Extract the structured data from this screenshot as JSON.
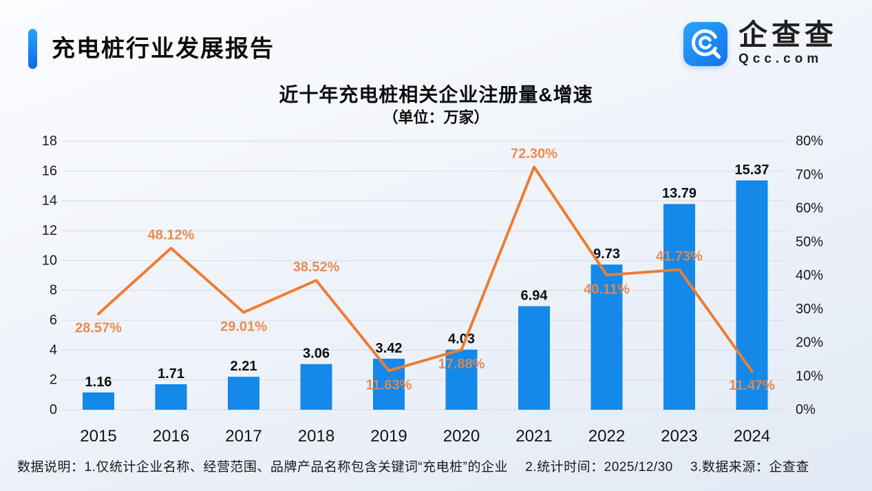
{
  "header": {
    "title": "充电桩行业发展报告",
    "logo_text": "企查查",
    "logo_domain": "Qcc.com"
  },
  "footer": {
    "note": "数据说明：1.仅统计企业名称、经营范围、品牌产品名称包含关键词“充电桩”的企业　 2.统计时间：2025/12/30 　3.数据来源：企查查"
  },
  "chart_data": {
    "type": "bar+line combo",
    "title": "近十年充电桩相关企业注册量&增速",
    "subtitle": "（单位：万家）",
    "categories": [
      "2015",
      "2016",
      "2017",
      "2018",
      "2019",
      "2020",
      "2021",
      "2022",
      "2023",
      "2024"
    ],
    "series": [
      {
        "name": "充电桩相关企业注册量(万家)",
        "type": "bar",
        "axis": "left",
        "color": "#1489E9",
        "values": [
          1.16,
          1.71,
          2.21,
          3.06,
          3.42,
          4.03,
          6.94,
          9.73,
          13.79,
          15.37
        ],
        "value_labels": [
          "1.16",
          "1.71",
          "2.21",
          "3.06",
          "3.42",
          "4.03",
          "6.94",
          "9.73",
          "13.79",
          "15.37"
        ]
      },
      {
        "name": "注册量增速",
        "type": "line",
        "axis": "right",
        "color": "#ED7D31",
        "label_color": "#E8864A",
        "values": [
          28.57,
          48.12,
          29.01,
          38.52,
          11.63,
          17.88,
          72.3,
          40.11,
          41.73,
          11.47
        ],
        "value_labels": [
          "28.57%",
          "48.12%",
          "29.01%",
          "38.52%",
          "11.63%",
          "17.88%",
          "72.30%",
          "40.11%",
          "41.73%",
          "11.47%"
        ],
        "label_positions": [
          "below",
          "above",
          "below",
          "above",
          "below",
          "below",
          "above",
          "below",
          "above",
          "below"
        ]
      }
    ],
    "left_axis": {
      "min": 0,
      "max": 18,
      "step": 2,
      "ticks": [
        "0",
        "2",
        "4",
        "6",
        "8",
        "10",
        "12",
        "14",
        "16",
        "18"
      ]
    },
    "right_axis": {
      "min": 0,
      "max": 80,
      "step": 10,
      "ticks": [
        "0%",
        "10%",
        "20%",
        "30%",
        "40%",
        "50%",
        "60%",
        "70%",
        "80%"
      ]
    },
    "grid": true,
    "legend": "none",
    "grid_color": "#d8dbe0",
    "text_color": "#1a1a1a"
  }
}
